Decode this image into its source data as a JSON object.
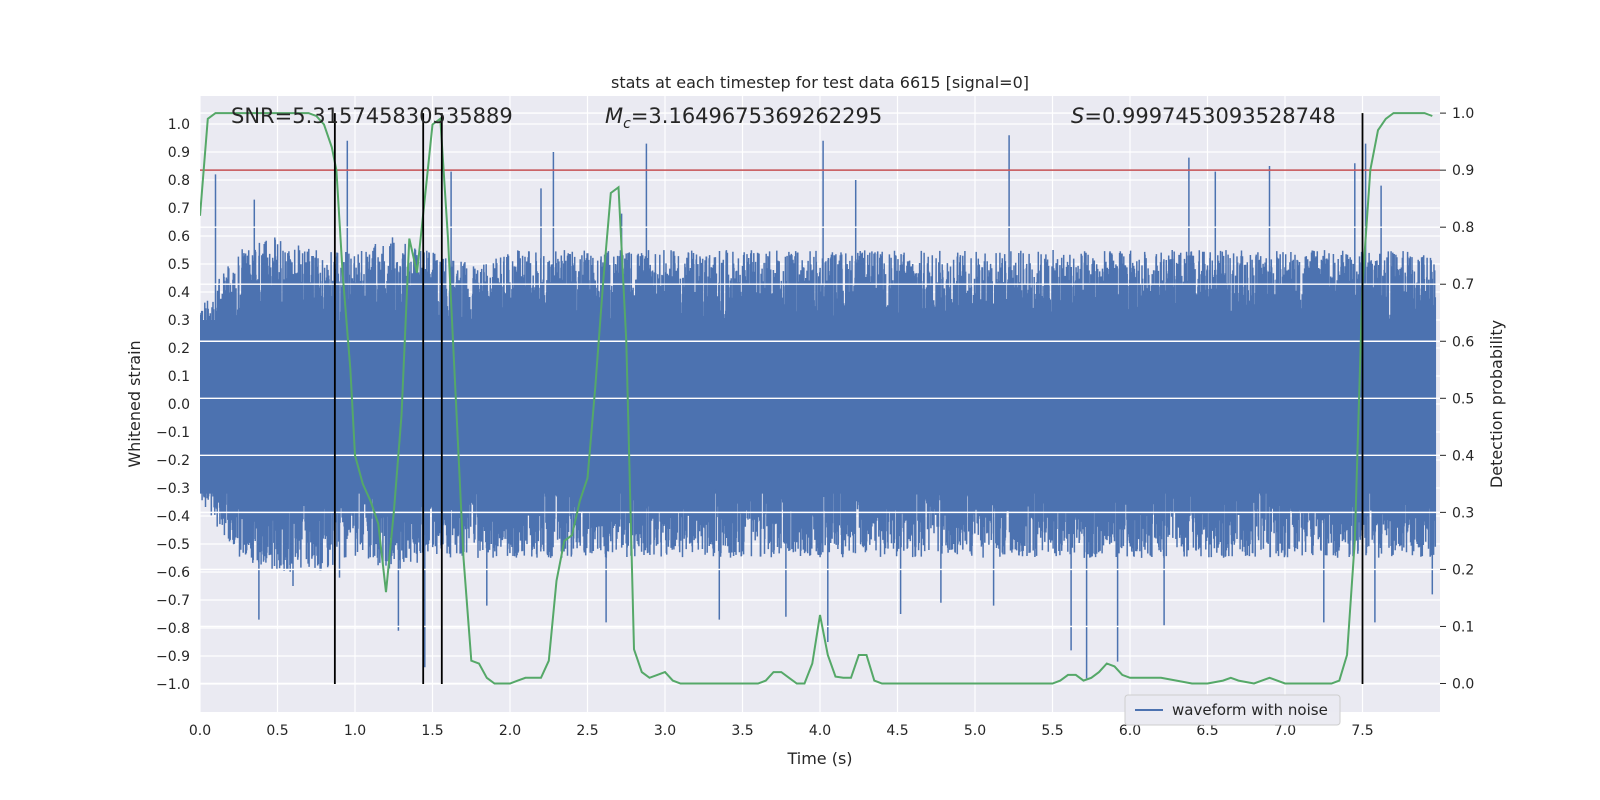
{
  "chart_data": {
    "type": "line",
    "title": "stats at each timestep for test data 6615 [signal=0]",
    "xlabel": "Time (s)",
    "ylabel": "Whitened strain",
    "ylabel_right": "Detection probability",
    "xlim": [
      0.0,
      8.0
    ],
    "ylim": [
      -1.1,
      1.1
    ],
    "ylim_right": [
      -0.05,
      1.03
    ],
    "x_ticks": [
      0.0,
      0.5,
      1.0,
      1.5,
      2.0,
      2.5,
      3.0,
      3.5,
      4.0,
      4.5,
      5.0,
      5.5,
      6.0,
      6.5,
      7.0,
      7.5
    ],
    "x_tick_labels": [
      "0.0",
      "0.5",
      "1.0",
      "1.5",
      "2.0",
      "2.5",
      "3.0",
      "3.5",
      "4.0",
      "4.5",
      "5.0",
      "5.5",
      "6.0",
      "6.5",
      "7.0",
      "7.5"
    ],
    "y_ticks": [
      1.0,
      0.9,
      0.8,
      0.7,
      0.6,
      0.5,
      0.4,
      0.3,
      0.2,
      0.1,
      0.0,
      -0.1,
      -0.2,
      -0.3,
      -0.4,
      -0.5,
      -0.6,
      -0.7,
      -0.8,
      -0.9,
      -1.0
    ],
    "y_tick_labels": [
      "1.0",
      "0.9",
      "0.8",
      "0.7",
      "0.6",
      "0.5",
      "0.4",
      "0.3",
      "0.2",
      "0.1",
      "0.0",
      "−0.1",
      "−0.2",
      "−0.3",
      "−0.4",
      "−0.5",
      "−0.6",
      "−0.7",
      "−0.8",
      "−0.9",
      "−1.0"
    ],
    "y2_ticks": [
      1.0,
      0.9,
      0.8,
      0.7,
      0.6,
      0.5,
      0.4,
      0.3,
      0.2,
      0.1,
      0.0
    ],
    "y2_tick_labels": [
      "1.0",
      "0.9",
      "0.8",
      "0.7",
      "0.6",
      "0.5",
      "0.4",
      "0.3",
      "0.2",
      "0.1",
      "0.0"
    ],
    "grid": true,
    "legend_position": "lower-right",
    "annotations": {
      "snr": "SNR=5.315745830535889",
      "mc_symbol": "M",
      "mc_sub": "c",
      "mc_value": "=3.1649675369262295",
      "s_symbol": "S",
      "s_value": "=0.9997453093528748"
    },
    "threshold": {
      "value": 0.9,
      "axis": "right",
      "color": "#c44e52"
    },
    "vertical_markers": [
      0.87,
      1.44,
      1.56,
      7.5
    ],
    "series": [
      {
        "name": "waveform with noise",
        "color": "#4c72b0",
        "kind": "noise",
        "envelope_upper": [
          0.35,
          0.55,
          0.6,
          0.55,
          0.55,
          0.6,
          0.55,
          0.5,
          0.55,
          0.55,
          0.55,
          0.55,
          0.55,
          0.55,
          0.55,
          0.55,
          0.55,
          0.55,
          0.55,
          0.55,
          0.55,
          0.55,
          0.55,
          0.55,
          0.55,
          0.55,
          0.55,
          0.55,
          0.55,
          0.55,
          0.55,
          0.55,
          0.55
        ],
        "envelope_lower": [
          -0.35,
          -0.55,
          -0.6,
          -0.6,
          -0.55,
          -0.6,
          -0.55,
          -0.55,
          -0.55,
          -0.55,
          -0.55,
          -0.55,
          -0.55,
          -0.55,
          -0.55,
          -0.55,
          -0.55,
          -0.55,
          -0.55,
          -0.55,
          -0.55,
          -0.55,
          -0.55,
          -0.55,
          -0.55,
          -0.55,
          -0.55,
          -0.55,
          -0.55,
          -0.55,
          -0.55,
          -0.55,
          -0.55
        ],
        "spikes": [
          [
            0.1,
            0.82
          ],
          [
            0.35,
            0.73
          ],
          [
            0.38,
            -0.77
          ],
          [
            0.6,
            -0.65
          ],
          [
            0.95,
            0.94
          ],
          [
            0.9,
            -0.62
          ],
          [
            1.28,
            -0.81
          ],
          [
            1.45,
            -0.94
          ],
          [
            1.62,
            0.83
          ],
          [
            1.85,
            -0.72
          ],
          [
            2.2,
            0.77
          ],
          [
            2.28,
            0.9
          ],
          [
            2.62,
            -0.78
          ],
          [
            2.72,
            0.68
          ],
          [
            2.88,
            0.93
          ],
          [
            3.35,
            -0.77
          ],
          [
            3.78,
            -0.76
          ],
          [
            4.02,
            0.94
          ],
          [
            4.05,
            -0.85
          ],
          [
            4.23,
            0.8
          ],
          [
            4.52,
            -0.75
          ],
          [
            4.78,
            -0.71
          ],
          [
            5.22,
            0.96
          ],
          [
            5.12,
            -0.72
          ],
          [
            5.62,
            -0.88
          ],
          [
            5.72,
            -0.98
          ],
          [
            5.92,
            -0.92
          ],
          [
            6.22,
            -0.79
          ],
          [
            6.38,
            0.88
          ],
          [
            6.55,
            0.83
          ],
          [
            6.9,
            0.85
          ],
          [
            7.25,
            -0.78
          ],
          [
            7.45,
            0.86
          ],
          [
            7.52,
            0.93
          ],
          [
            7.58,
            -0.78
          ],
          [
            7.62,
            0.78
          ],
          [
            7.95,
            -0.68
          ]
        ]
      },
      {
        "name": "",
        "color": "#55a868",
        "axis": "right",
        "x": [
          0.0,
          0.05,
          0.1,
          0.2,
          0.3,
          0.4,
          0.5,
          0.6,
          0.7,
          0.75,
          0.8,
          0.85,
          0.88,
          0.92,
          0.97,
          1.0,
          1.05,
          1.1,
          1.15,
          1.2,
          1.25,
          1.3,
          1.35,
          1.4,
          1.45,
          1.5,
          1.55,
          1.6,
          1.65,
          1.7,
          1.75,
          1.8,
          1.85,
          1.9,
          1.95,
          2.0,
          2.05,
          2.1,
          2.15,
          2.2,
          2.25,
          2.3,
          2.35,
          2.4,
          2.45,
          2.5,
          2.55,
          2.6,
          2.65,
          2.7,
          2.75,
          2.8,
          2.85,
          2.9,
          2.95,
          3.0,
          3.05,
          3.1,
          3.2,
          3.3,
          3.4,
          3.5,
          3.6,
          3.65,
          3.7,
          3.75,
          3.8,
          3.85,
          3.9,
          3.95,
          4.0,
          4.05,
          4.1,
          4.15,
          4.2,
          4.25,
          4.3,
          4.35,
          4.4,
          4.5,
          4.7,
          5.0,
          5.3,
          5.5,
          5.55,
          5.6,
          5.65,
          5.7,
          5.75,
          5.8,
          5.85,
          5.9,
          5.95,
          6.0,
          6.05,
          6.1,
          6.2,
          6.3,
          6.4,
          6.5,
          6.6,
          6.65,
          6.7,
          6.8,
          6.9,
          7.0,
          7.1,
          7.2,
          7.3,
          7.35,
          7.4,
          7.45,
          7.5,
          7.55,
          7.6,
          7.65,
          7.7,
          7.8,
          7.9,
          7.95
        ],
        "y": [
          0.82,
          0.99,
          1.0,
          1.0,
          1.0,
          1.0,
          1.0,
          1.0,
          1.0,
          0.995,
          0.98,
          0.94,
          0.9,
          0.72,
          0.55,
          0.4,
          0.35,
          0.32,
          0.28,
          0.16,
          0.3,
          0.47,
          0.78,
          0.72,
          0.85,
          0.98,
          0.99,
          0.78,
          0.5,
          0.22,
          0.04,
          0.035,
          0.01,
          0.0,
          0.0,
          0.0,
          0.005,
          0.01,
          0.01,
          0.01,
          0.04,
          0.18,
          0.25,
          0.26,
          0.32,
          0.36,
          0.52,
          0.7,
          0.86,
          0.87,
          0.6,
          0.06,
          0.02,
          0.01,
          0.015,
          0.02,
          0.005,
          0.0,
          0.0,
          0.0,
          0.0,
          0.0,
          0.0,
          0.005,
          0.02,
          0.02,
          0.01,
          0.0,
          0.0,
          0.035,
          0.12,
          0.05,
          0.012,
          0.01,
          0.01,
          0.05,
          0.05,
          0.005,
          0.0,
          0.0,
          0.0,
          0.0,
          0.0,
          0.0,
          0.005,
          0.015,
          0.015,
          0.005,
          0.01,
          0.02,
          0.035,
          0.03,
          0.015,
          0.01,
          0.01,
          0.01,
          0.01,
          0.005,
          0.0,
          0.0,
          0.005,
          0.01,
          0.005,
          0.0,
          0.01,
          0.0,
          0.0,
          0.0,
          0.0,
          0.005,
          0.05,
          0.25,
          0.7,
          0.9,
          0.97,
          0.99,
          1.0,
          1.0,
          1.0,
          0.995
        ]
      }
    ]
  }
}
